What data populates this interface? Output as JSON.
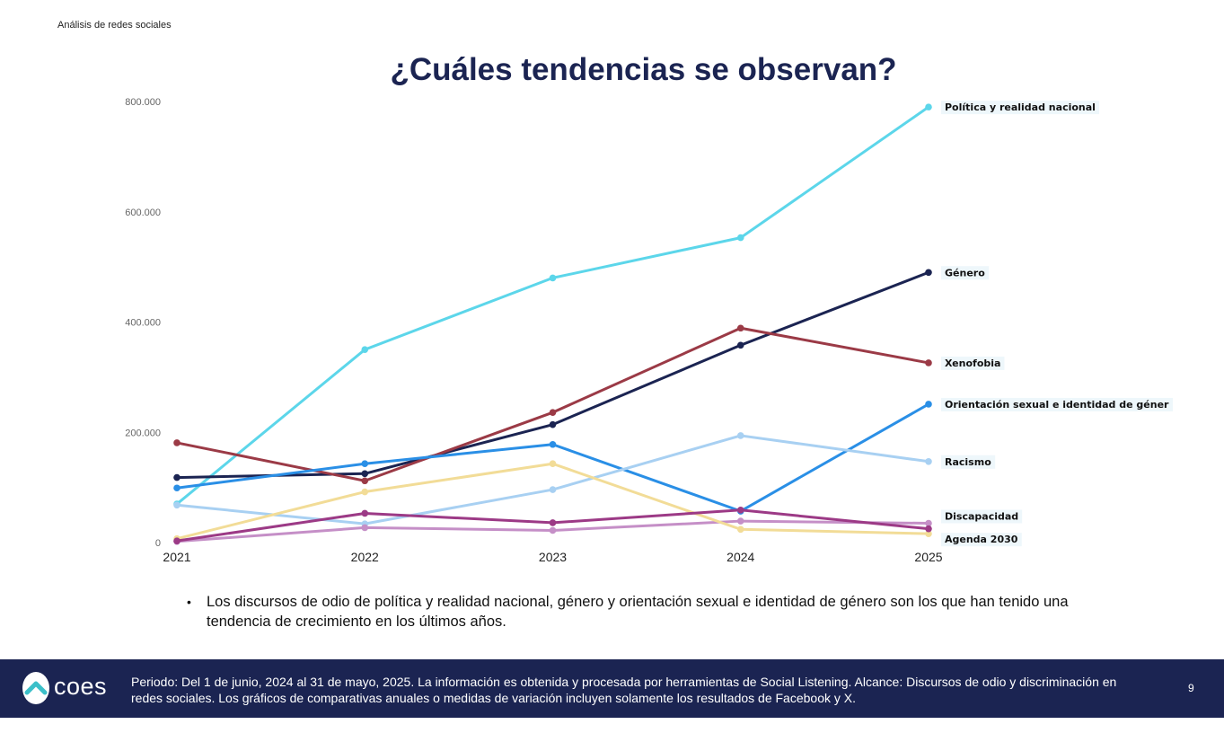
{
  "header": {
    "section": "Análisis de redes sociales"
  },
  "title": "¿Cuáles tendencias se observan?",
  "chart_data": {
    "type": "line",
    "x": [
      "2021",
      "2022",
      "2023",
      "2024",
      "2025"
    ],
    "ylim": [
      0,
      800000
    ],
    "yticks": [
      {
        "value": 0,
        "label": "0"
      },
      {
        "value": 200000,
        "label": "200.000"
      },
      {
        "value": 400000,
        "label": "400.000"
      },
      {
        "value": 600000,
        "label": "600.000"
      },
      {
        "value": 800000,
        "label": "800.000"
      }
    ],
    "grid": false,
    "series": [
      {
        "name": "Política y realidad nacional",
        "color": "#5cd6ea",
        "values": [
          70000,
          350000,
          480000,
          553000,
          790000
        ]
      },
      {
        "name": "Género",
        "color": "#1b2452",
        "values": [
          118000,
          125000,
          214000,
          358000,
          490000
        ]
      },
      {
        "name": "Xenofobia",
        "color": "#9b3a46",
        "values": [
          181000,
          112000,
          236000,
          389000,
          326000
        ]
      },
      {
        "name": "Orientación sexual e identidad de géner",
        "color": "#2a8fe6",
        "values": [
          99000,
          143000,
          178000,
          57000,
          251000
        ]
      },
      {
        "name": "Racismo",
        "color": "#a8d0f2",
        "values": [
          68000,
          34000,
          96000,
          194000,
          147000
        ]
      },
      {
        "name": "Discapacidad",
        "color": "#c58fc7",
        "values": [
          2000,
          27000,
          22000,
          39000,
          35000
        ]
      },
      {
        "name": "Agenda 2030",
        "color": "#f2dc97",
        "values": [
          7000,
          92000,
          143000,
          24000,
          16000
        ]
      },
      {
        "name": "",
        "color": "#9c3a86",
        "values": [
          3000,
          53000,
          36000,
          59000,
          25000
        ]
      }
    ]
  },
  "bullet": "Los discursos de odio de política y realidad nacional, género y  orientación sexual e identidad de género son los que han tenido una tendencia de crecimiento en los últimos años.",
  "footer": {
    "logo": "coes",
    "note": "Periodo: Del 1 de junio, 2024 al 31 de mayo, 2025. La información es obtenida y procesada por herramientas de Social Listening. Alcance: Discursos de odio y discriminación en redes sociales. Los gráficos de comparativas anuales o medidas de variación incluyen solamente los resultados de Facebook y X.",
    "page": "9"
  }
}
